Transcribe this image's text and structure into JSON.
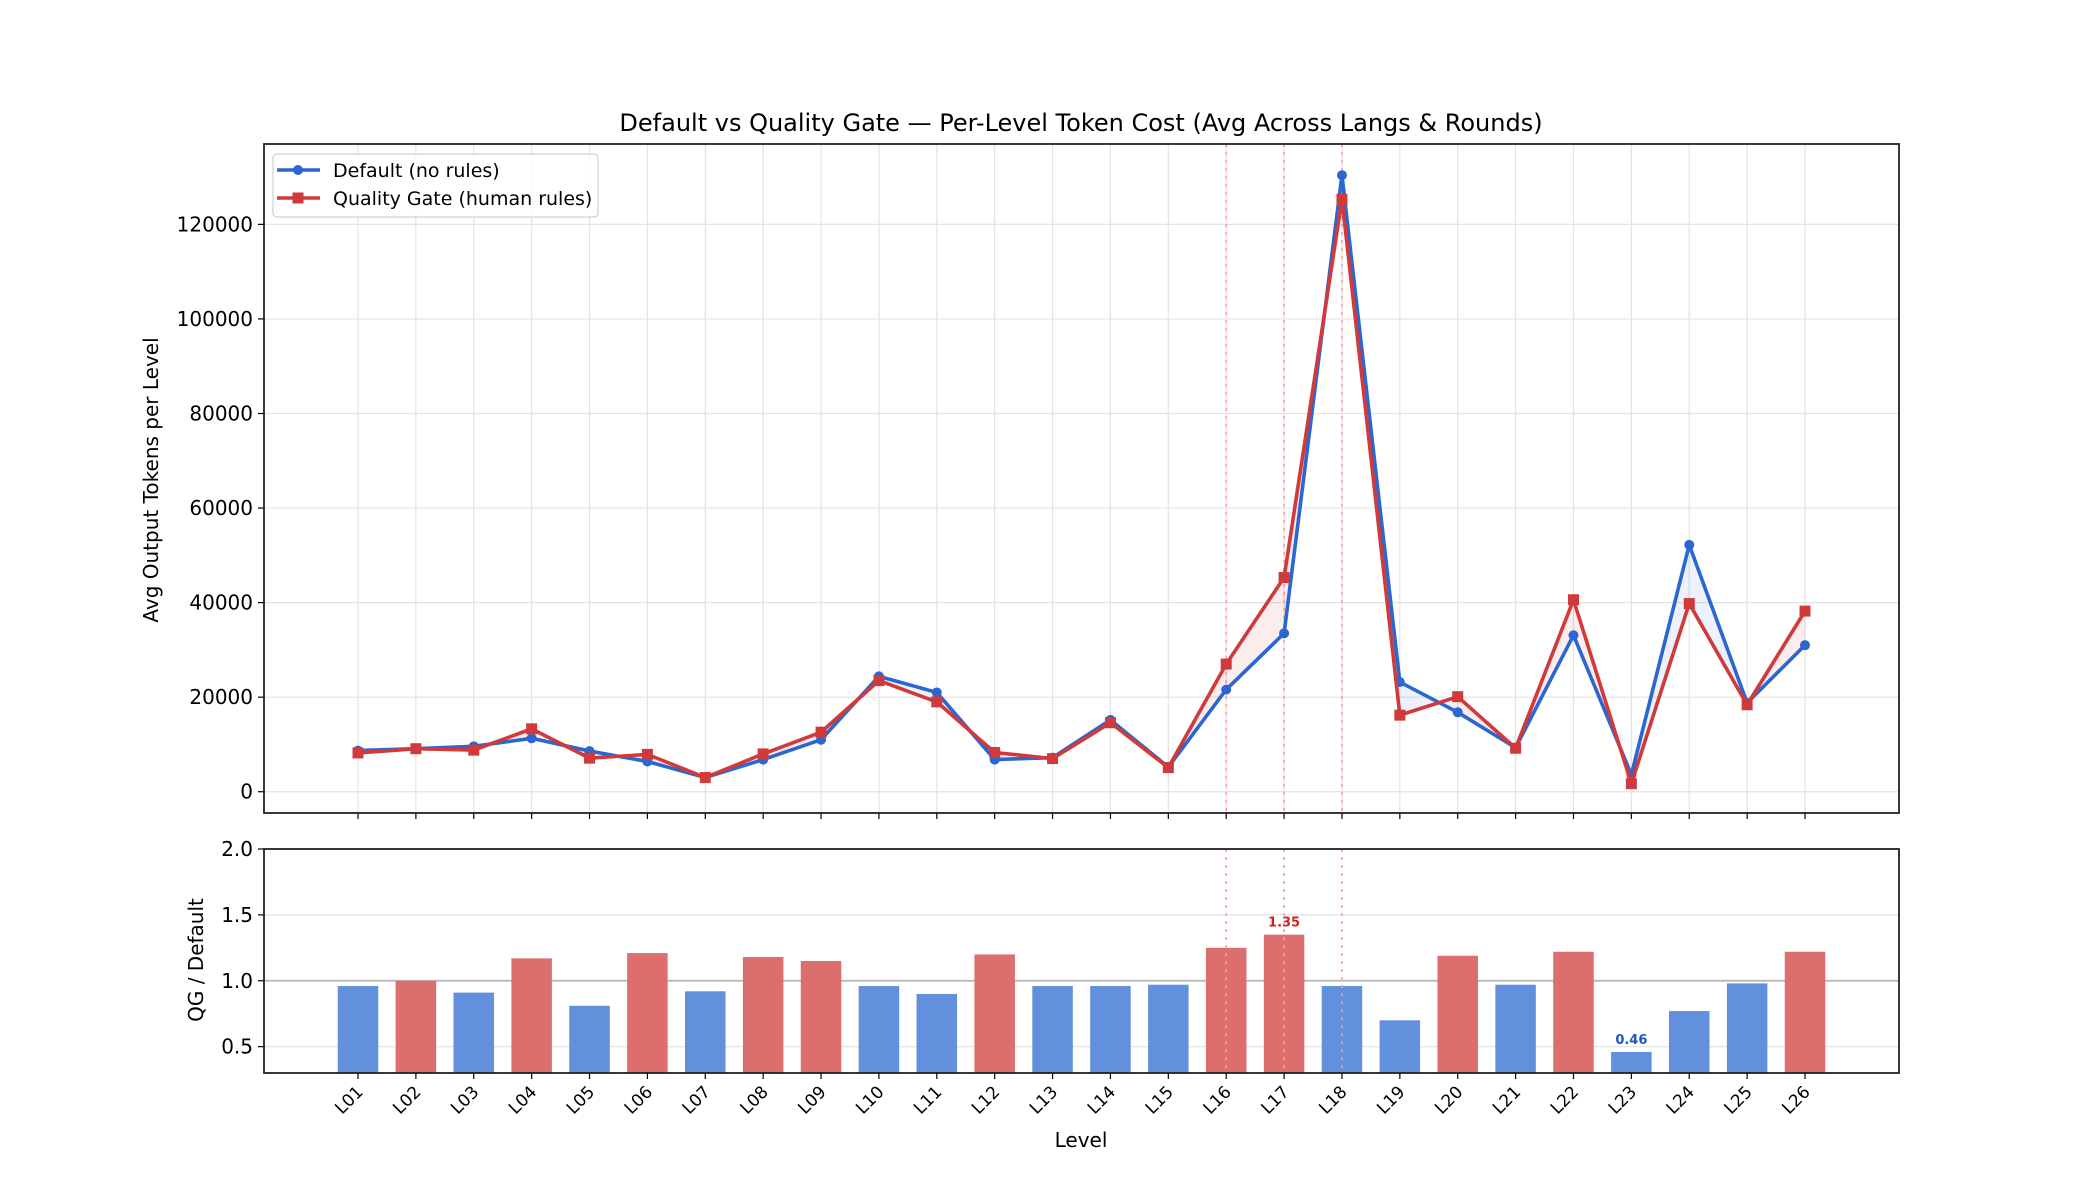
{
  "chart_data": [
    {
      "type": "line",
      "title": "Default vs Quality Gate — Per-Level Token Cost (Avg Across Langs & Rounds)",
      "xlabel": "",
      "ylabel": "Avg Output Tokens per Level",
      "categories": [
        "L01",
        "L02",
        "L03",
        "L04",
        "L05",
        "L06",
        "L07",
        "L08",
        "L09",
        "L10",
        "L11",
        "L12",
        "L13",
        "L14",
        "L15",
        "L16",
        "L17",
        "L18",
        "L19",
        "L20",
        "L21",
        "L22",
        "L23",
        "L24",
        "L25",
        "L26"
      ],
      "ylim": [
        -4500,
        137000
      ],
      "yticks": [
        0,
        20000,
        40000,
        60000,
        80000,
        100000,
        120000
      ],
      "grid": true,
      "legend_placement": "upper-left",
      "highlight_levels": [
        "L16",
        "L17",
        "L18"
      ],
      "series": [
        {
          "name": "Default (no rules)",
          "color": "#2b66d1",
          "marker": "circle",
          "values": [
            8700,
            9100,
            9600,
            11300,
            8600,
            6400,
            3000,
            6800,
            11000,
            24400,
            21000,
            6800,
            7200,
            15200,
            5200,
            21600,
            33500,
            130400,
            23200,
            16800,
            9300,
            33100,
            3600,
            52200,
            18800,
            31000
          ]
        },
        {
          "name": "Quality Gate (human rules)",
          "color": "#d03a3a",
          "marker": "square",
          "values": [
            8200,
            9100,
            8800,
            13300,
            7100,
            7900,
            3000,
            8000,
            12600,
            23500,
            19000,
            8300,
            7000,
            14600,
            5100,
            27000,
            45300,
            125300,
            16200,
            20100,
            9200,
            40600,
            1700,
            39800,
            18400,
            38200
          ]
        }
      ]
    },
    {
      "type": "bar",
      "xlabel": "Level",
      "ylabel": "QG / Default",
      "categories": [
        "L01",
        "L02",
        "L03",
        "L04",
        "L05",
        "L06",
        "L07",
        "L08",
        "L09",
        "L10",
        "L11",
        "L12",
        "L13",
        "L14",
        "L15",
        "L16",
        "L17",
        "L18",
        "L19",
        "L20",
        "L21",
        "L22",
        "L23",
        "L24",
        "L25",
        "L26"
      ],
      "values": [
        0.96,
        1.0,
        0.91,
        1.17,
        0.81,
        1.21,
        0.92,
        1.18,
        1.15,
        0.96,
        0.9,
        1.2,
        0.96,
        0.96,
        0.97,
        1.25,
        1.35,
        0.96,
        0.7,
        1.19,
        0.97,
        1.22,
        0.46,
        0.77,
        0.98,
        1.22
      ],
      "ylim": [
        0.3,
        2.0
      ],
      "yticks": [
        "0.5",
        "1.0",
        "1.5",
        "2.0"
      ],
      "reference_line": 1.0,
      "colors": {
        "above": "#dc6e6e",
        "below": "#6290dc"
      },
      "annotations": [
        {
          "level": "L17",
          "text": "1.35",
          "color": "#d02020"
        },
        {
          "level": "L23",
          "text": "0.46",
          "color": "#1f55c8"
        }
      ]
    }
  ]
}
